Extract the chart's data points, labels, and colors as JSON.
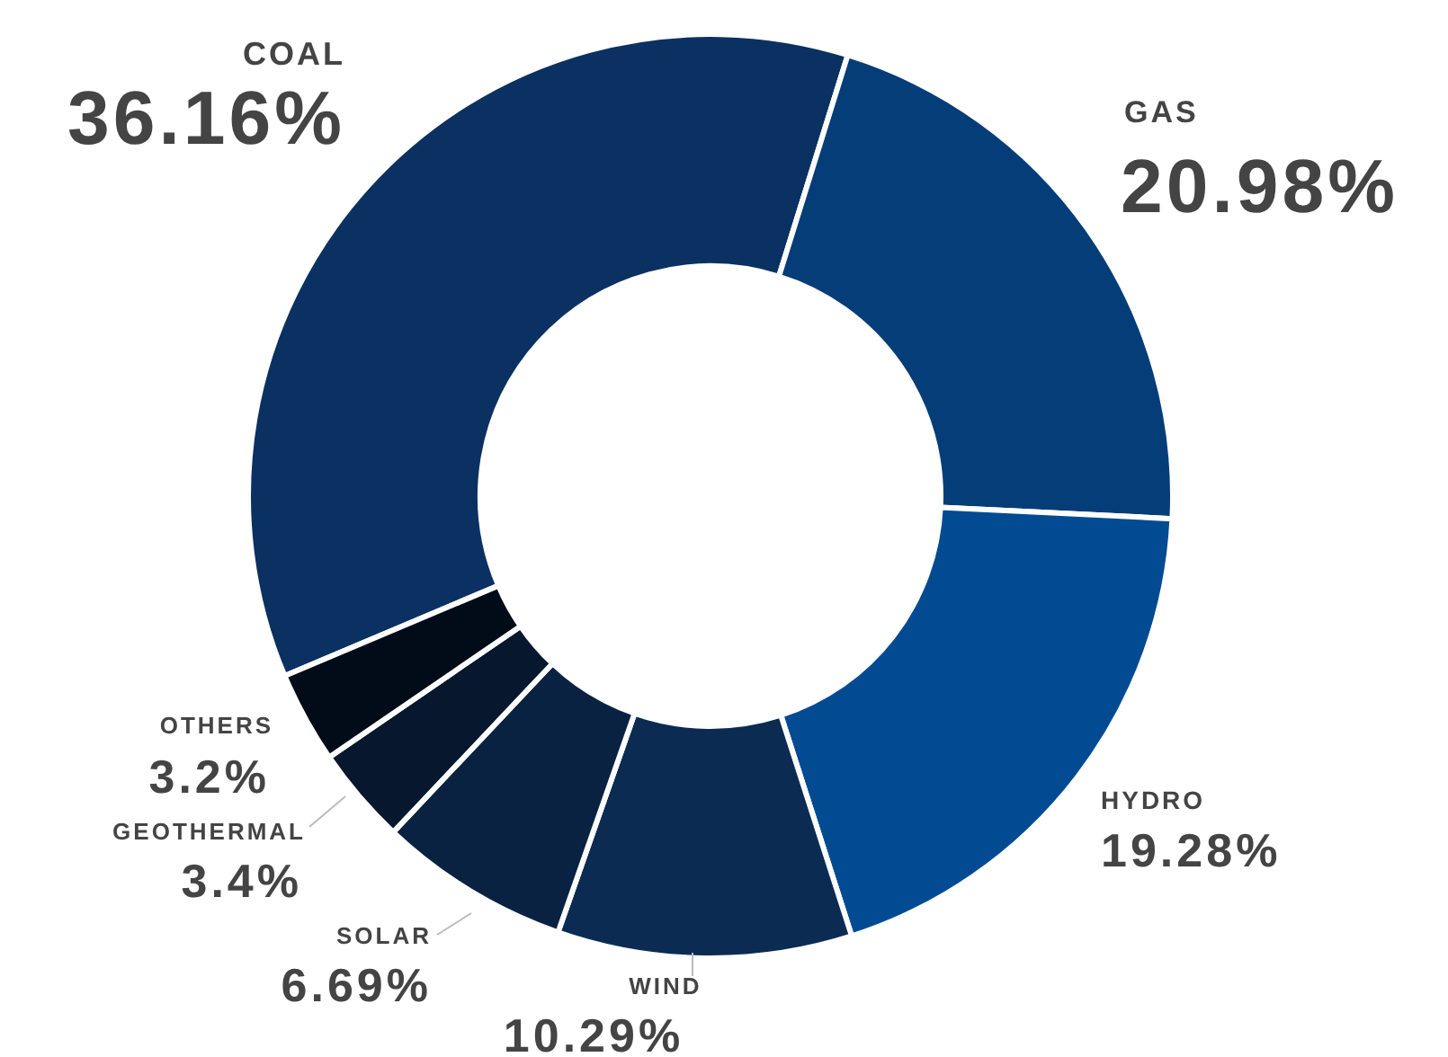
{
  "chart_data": {
    "type": "donut",
    "categories": [
      "COAL",
      "GAS",
      "HYDRO",
      "WIND",
      "SOLAR",
      "GEOTHERMAL",
      "OTHERS"
    ],
    "values": [
      36.16,
      20.98,
      19.28,
      10.29,
      6.69,
      3.4,
      3.2
    ],
    "value_labels": [
      "36.16%",
      "20.98%",
      "19.28%",
      "10.29%",
      "6.69%",
      "3.4%",
      "3.2%"
    ],
    "colors": [
      "#0a3161",
      "#043d78",
      "#024b93",
      "#0b2b52",
      "#0a2242",
      "#06172e",
      "#020b18"
    ]
  }
}
